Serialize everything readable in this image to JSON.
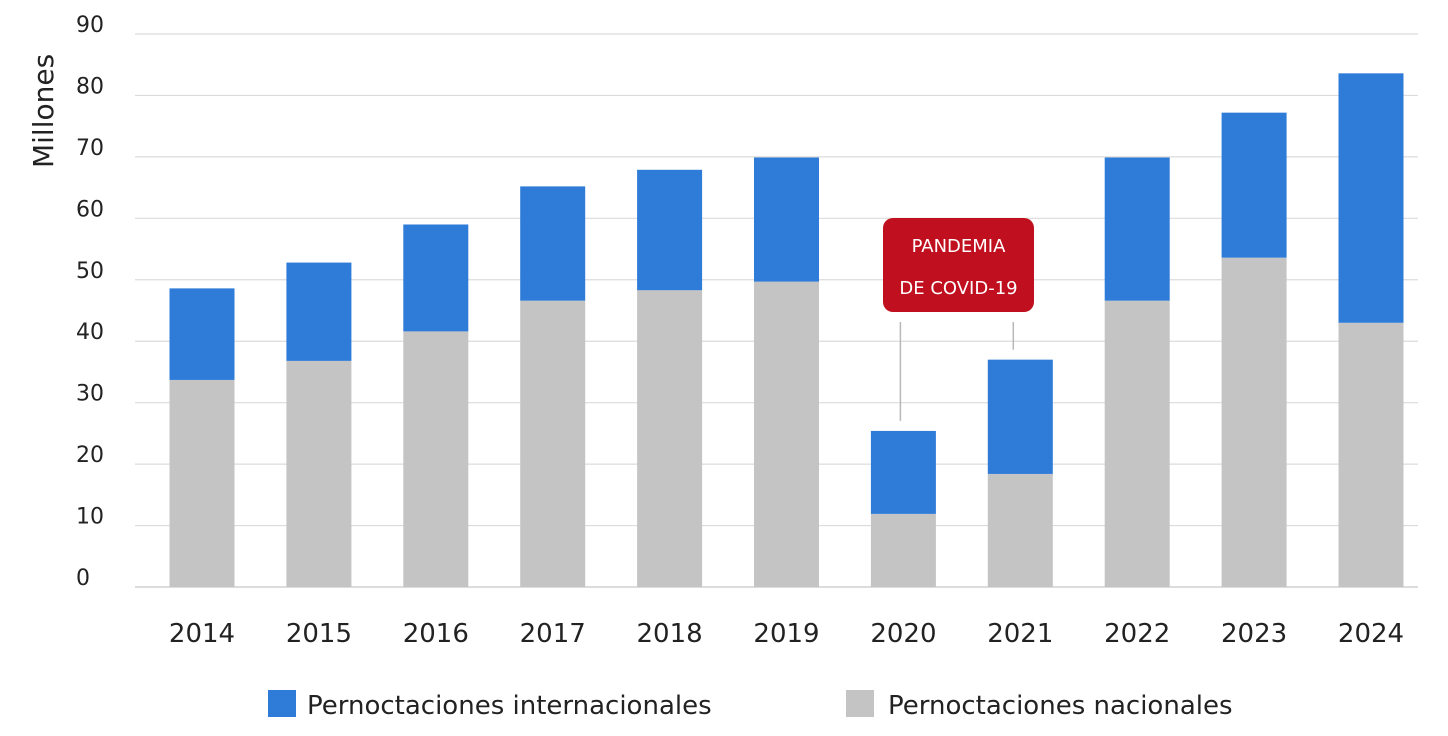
{
  "chart_data": {
    "type": "bar",
    "stacked": true,
    "ylabel": "Millones",
    "xlabel": "",
    "ylim": [
      0,
      90
    ],
    "yticks": [
      0,
      10,
      20,
      30,
      40,
      50,
      60,
      70,
      80,
      90
    ],
    "grid": true,
    "legend_position": "bottom",
    "categories": [
      "2014",
      "2015",
      "2016",
      "2017",
      "2018",
      "2019",
      "2020",
      "2021",
      "2022",
      "2023",
      "2024"
    ],
    "series": [
      {
        "name": "Pernoctaciones nacionales",
        "color": "#c4c4c4",
        "values": [
          33.7,
          36.8,
          41.6,
          46.6,
          48.3,
          49.7,
          11.9,
          18.4,
          46.6,
          53.6,
          43.0
        ]
      },
      {
        "name": "Pernoctaciones internacionales",
        "color": "#2e7bd8",
        "values": [
          14.9,
          16.0,
          17.4,
          18.6,
          19.6,
          20.2,
          13.5,
          18.6,
          23.3,
          23.6,
          40.6
        ]
      }
    ],
    "legend_order": [
      "Pernoctaciones internacionales",
      "Pernoctaciones nacionales"
    ],
    "annotation": {
      "lines": [
        "PANDEMIA",
        "DE COVID-19"
      ],
      "color": "#c0101f",
      "targets": [
        "2020",
        "2021"
      ]
    }
  }
}
